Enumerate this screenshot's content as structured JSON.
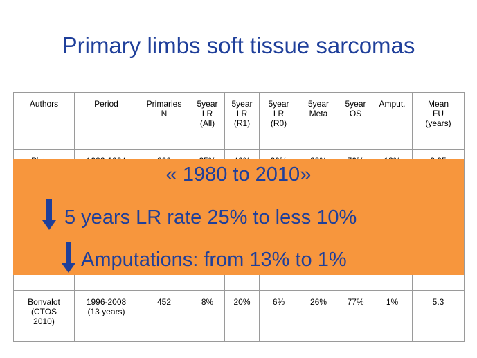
{
  "title": "Primary limbs soft tissue sarcomas",
  "table": {
    "headers": [
      "Authors",
      "Period",
      "Primaries\nN",
      "5year\nLR\n(All)",
      "5year\nLR\n(R1)",
      "5year\nLR\n(R0)",
      "5year\nMeta",
      "5year\nOS",
      "Amput.",
      "Mean\nFU\n(years)"
    ],
    "rows": [
      [
        "Pisters",
        "1982-1994",
        "800",
        "25%",
        "40%",
        "20%",
        "28%",
        "76%",
        "13%",
        "3.95"
      ],
      [
        "",
        "",
        "",
        "",
        "",
        "",
        "",
        "",
        "",
        ""
      ],
      [
        "Bonvalot\n(CTOS\n2010)",
        "1996-2008\n(13 years)",
        "452",
        "8%",
        "20%",
        "6%",
        "26%",
        "77%",
        "1%",
        "5.3"
      ]
    ]
  },
  "overlay": {
    "line1": "« 1980 to 2010»",
    "line2": "5 years LR rate 25% to less 10%",
    "line3": "Amputations: from 13% to 1%",
    "bg_color": "#f7963d",
    "text_color": "#1f3f9a",
    "arrow_icon": "arrow-down-icon"
  }
}
